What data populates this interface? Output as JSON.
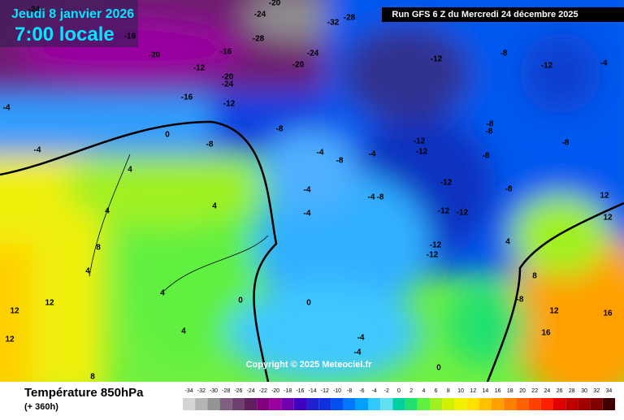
{
  "header": {
    "date": "Jeudi 8 janvier 2026",
    "time": "7:00 locale",
    "run": "Run GFS 6 Z du Mercredi 24 décembre 2025"
  },
  "copyright": "Copyright © 2025 Meteociel.fr",
  "footer": {
    "title": "Température 850hPa",
    "lead": "(+ 360h)"
  },
  "legend": {
    "values": [
      -34,
      -32,
      -30,
      -28,
      -26,
      -24,
      -22,
      -20,
      -18,
      -16,
      -14,
      -12,
      -10,
      -8,
      -6,
      -4,
      -2,
      0,
      2,
      4,
      6,
      8,
      10,
      12,
      14,
      16,
      18,
      20,
      22,
      24,
      26,
      28,
      30,
      32,
      34
    ],
    "colors": [
      "#d4d4d4",
      "#b4b4b4",
      "#949494",
      "#806080",
      "#704070",
      "#602060",
      "#800080",
      "#9a00a0",
      "#7000b0",
      "#4000c0",
      "#2020d0",
      "#1030e0",
      "#0050f0",
      "#0078ff",
      "#00a0ff",
      "#30c8ff",
      "#60e0f0",
      "#00d0a0",
      "#20e070",
      "#60f040",
      "#a0f020",
      "#d0f000",
      "#f0f000",
      "#ffe000",
      "#ffc000",
      "#ffa000",
      "#ff8000",
      "#ff6000",
      "#ff4000",
      "#ff2000",
      "#e00000",
      "#c00000",
      "#a00000",
      "#800000",
      "#400000"
    ]
  },
  "contour_labels": [
    -24,
    -16,
    -20,
    -12,
    -16,
    -20,
    -24,
    -16,
    -12,
    -24,
    -20,
    -32,
    -28,
    -28,
    -24,
    -20,
    -12,
    -8,
    -12,
    -4,
    -4,
    -4,
    -8,
    0,
    -4,
    -8,
    -4,
    -8,
    -8,
    -8,
    -12,
    -12,
    -8,
    -8,
    4,
    4,
    4,
    -4,
    -4,
    -4,
    -8,
    -12,
    -12,
    -12,
    -8,
    12,
    12,
    8,
    4,
    -12,
    -12,
    4,
    12,
    12,
    4,
    0,
    0,
    -4,
    8,
    -8,
    12,
    16,
    16,
    4,
    -4,
    0,
    8,
    12
  ]
}
